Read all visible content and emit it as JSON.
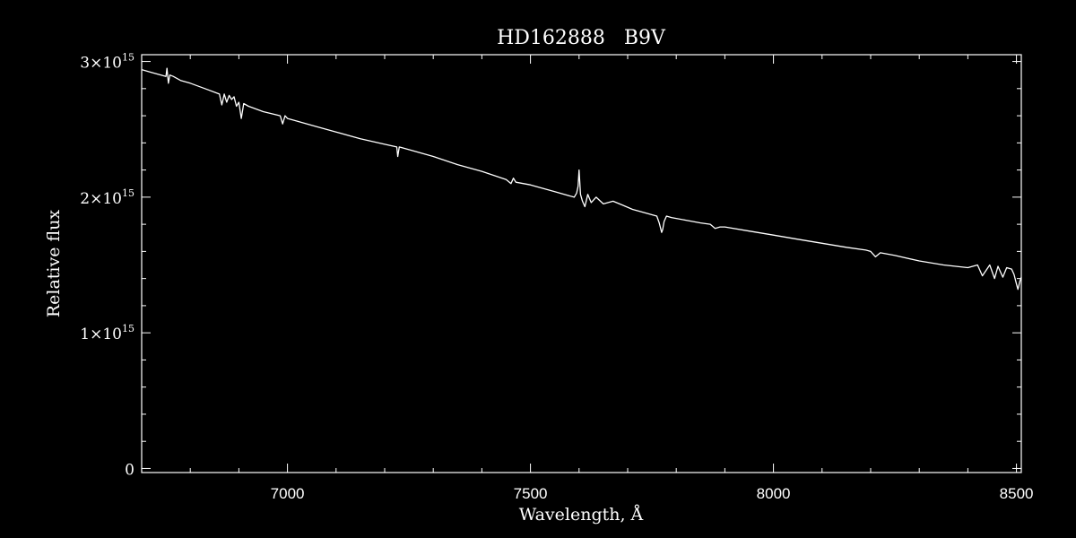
{
  "chart_data": {
    "type": "line",
    "title": "HD162888   B9V",
    "xlabel": "Wavelength, Å",
    "ylabel": "Relative flux",
    "xlim": [
      6700,
      8510
    ],
    "ylim": [
      -30000000000000.0,
      3050000000000000.0
    ],
    "x_ticks": [
      {
        "value": 7000,
        "label": "7000"
      },
      {
        "value": 7500,
        "label": "7500"
      },
      {
        "value": 8000,
        "label": "8000"
      },
      {
        "value": 8500,
        "label": "8500"
      }
    ],
    "y_ticks": [
      {
        "value": 0,
        "mantissa": "0",
        "exp": ""
      },
      {
        "value": 1000000000000000.0,
        "mantissa": "1×10",
        "exp": "15"
      },
      {
        "value": 2000000000000000.0,
        "mantissa": "2×10",
        "exp": "15"
      },
      {
        "value": 3000000000000000.0,
        "mantissa": "3×10",
        "exp": "15"
      }
    ],
    "grid": false,
    "colors": {
      "background": "#000000",
      "foreground": "#ffffff",
      "line": "#ffffff"
    },
    "series": [
      {
        "x": [
          6700,
          6720,
          6740,
          6750,
          6752,
          6755,
          6758,
          6765,
          6780,
          6800,
          6830,
          6860,
          6865,
          6870,
          6875,
          6880,
          6885,
          6890,
          6895,
          6900,
          6905,
          6910,
          6920,
          6950,
          6985,
          6990,
          6995,
          7000,
          7020,
          7050,
          7100,
          7150,
          7200,
          7225,
          7227,
          7230,
          7250,
          7300,
          7350,
          7400,
          7450,
          7460,
          7465,
          7470,
          7500,
          7550,
          7590,
          7595,
          7598,
          7600,
          7603,
          7607,
          7612,
          7618,
          7625,
          7635,
          7650,
          7670,
          7690,
          7710,
          7740,
          7760,
          7765,
          7770,
          7772,
          7775,
          7780,
          7790,
          7820,
          7850,
          7870,
          7880,
          7890,
          7900,
          7950,
          8000,
          8050,
          8100,
          8150,
          8190,
          8200,
          8210,
          8220,
          8250,
          8300,
          8350,
          8400,
          8420,
          8430,
          8445,
          8455,
          8462,
          8472,
          8480,
          8490,
          8495,
          8500,
          8503,
          8507,
          8510
        ],
        "y": [
          2940000000000000.0,
          2920000000000000.0,
          2900000000000000.0,
          2890000000000000.0,
          2950000000000000.0,
          2840000000000000.0,
          2900000000000000.0,
          2890000000000000.0,
          2860000000000000.0,
          2840000000000000.0,
          2800000000000000.0,
          2760000000000000.0,
          2680000000000000.0,
          2760000000000000.0,
          2700000000000000.0,
          2750000000000000.0,
          2720000000000000.0,
          2740000000000000.0,
          2670000000000000.0,
          2700000000000000.0,
          2580000000000000.0,
          2690000000000000.0,
          2670000000000000.0,
          2630000000000000.0,
          2600000000000000.0,
          2540000000000000.0,
          2600000000000000.0,
          2580000000000000.0,
          2560000000000000.0,
          2530000000000000.0,
          2480000000000000.0,
          2430000000000000.0,
          2390000000000000.0,
          2370000000000000.0,
          2300000000000000.0,
          2370000000000000.0,
          2350000000000000.0,
          2300000000000000.0,
          2240000000000000.0,
          2190000000000000.0,
          2130000000000000.0,
          2100000000000000.0,
          2140000000000000.0,
          2110000000000000.0,
          2090000000000000.0,
          2040000000000000.0,
          2000000000000000.0,
          2030000000000000.0,
          2080000000000000.0,
          2200000000000000.0,
          2020000000000000.0,
          1970000000000000.0,
          1930000000000000.0,
          2020000000000000.0,
          1960000000000000.0,
          2000000000000000.0,
          1950000000000000.0,
          1970000000000000.0,
          1940000000000000.0,
          1910000000000000.0,
          1880000000000000.0,
          1860000000000000.0,
          1810000000000000.0,
          1740000000000000.0,
          1760000000000000.0,
          1820000000000000.0,
          1860000000000000.0,
          1850000000000000.0,
          1830000000000000.0,
          1810000000000000.0,
          1800000000000000.0,
          1770000000000000.0,
          1780000000000000.0,
          1780000000000000.0,
          1750000000000000.0,
          1720000000000000.0,
          1690000000000000.0,
          1660000000000000.0,
          1630000000000000.0,
          1610000000000000.0,
          1600000000000000.0,
          1560000000000000.0,
          1590000000000000.0,
          1570000000000000.0,
          1530000000000000.0,
          1500000000000000.0,
          1480000000000000.0,
          1500000000000000.0,
          1420000000000000.0,
          1500000000000000.0,
          1400000000000000.0,
          1490000000000000.0,
          1410000000000000.0,
          1480000000000000.0,
          1470000000000000.0,
          1430000000000000.0,
          1360000000000000.0,
          1320000000000000.0,
          1380000000000000.0,
          1410000000000000.0
        ]
      }
    ]
  }
}
